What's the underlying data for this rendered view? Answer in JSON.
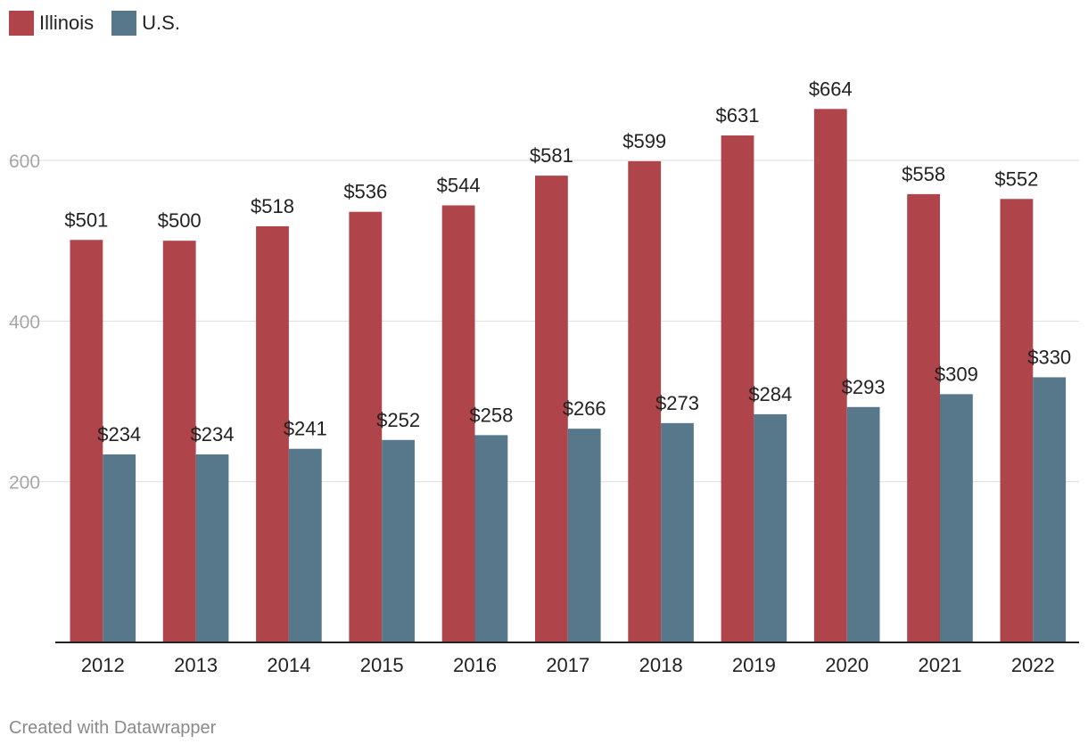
{
  "chart_data": {
    "type": "bar",
    "categories": [
      "2012",
      "2013",
      "2014",
      "2015",
      "2016",
      "2017",
      "2018",
      "2019",
      "2020",
      "2021",
      "2022"
    ],
    "series": [
      {
        "name": "Illinois",
        "color": "#b0444b",
        "values": [
          501,
          500,
          518,
          536,
          544,
          581,
          599,
          631,
          664,
          558,
          552
        ],
        "labels": [
          "$501",
          "$500",
          "$518",
          "$536",
          "$544",
          "$581",
          "$599",
          "$631",
          "$664",
          "$558",
          "$552"
        ]
      },
      {
        "name": "U.S.",
        "color": "#56788a",
        "values": [
          234,
          234,
          241,
          252,
          258,
          266,
          273,
          284,
          293,
          309,
          330
        ],
        "labels": [
          "$234",
          "$234",
          "$241",
          "$252",
          "$258",
          "$266",
          "$273",
          "$284",
          "$293",
          "$309",
          "$330"
        ]
      }
    ],
    "yticks": [
      200,
      400,
      600
    ],
    "ytick_labels": [
      "200",
      "400",
      "600"
    ],
    "ylim": [
      0,
      700
    ],
    "grid": true,
    "legend_position": "top-left"
  },
  "legend": {
    "illinois_label": "Illinois",
    "us_label": "U.S.",
    "illinois_color": "#b0444b",
    "us_color": "#56788a"
  },
  "footer": {
    "credit": "Created with Datawrapper"
  }
}
